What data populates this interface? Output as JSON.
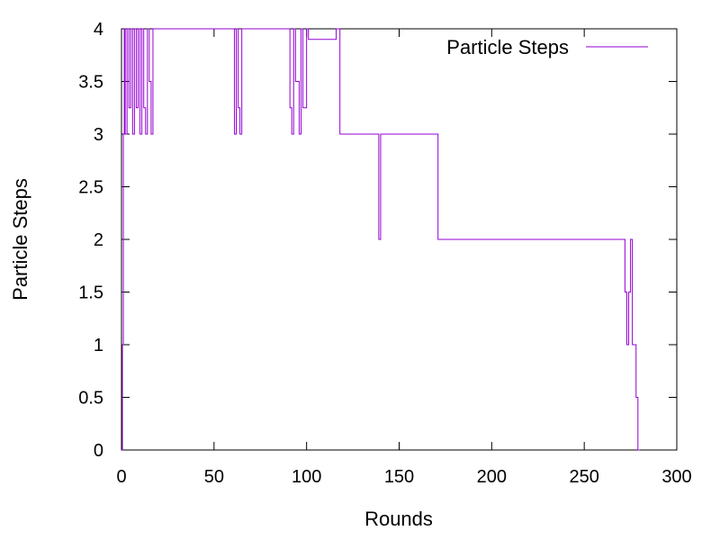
{
  "chart_data": {
    "type": "line",
    "title": "",
    "xlabel": "Rounds",
    "ylabel": "Particle Steps",
    "xlim": [
      0,
      300
    ],
    "ylim": [
      0,
      4
    ],
    "x_ticks": [
      "0",
      "50",
      "100",
      "150",
      "200",
      "250",
      "300"
    ],
    "y_ticks": [
      "0",
      "0.5",
      "1",
      "1.5",
      "2",
      "2.5",
      "3",
      "3.5",
      "4"
    ],
    "x_tick_values": [
      0,
      50,
      100,
      150,
      200,
      250,
      300
    ],
    "y_tick_values": [
      0,
      0.5,
      1,
      1.5,
      2,
      2.5,
      3,
      3.5,
      4
    ],
    "legend": {
      "position": "top-right"
    },
    "grid": false,
    "series": [
      {
        "name": "Particle Steps",
        "color": "#9400d3",
        "x": [
          0,
          0.5,
          0.5,
          1,
          1,
          1.5,
          1.5,
          2,
          2,
          3,
          3,
          4,
          4,
          5,
          5,
          6,
          6,
          7,
          7,
          8,
          8,
          9,
          9,
          10,
          10,
          11,
          11,
          12,
          12,
          13,
          13,
          14,
          14,
          15,
          15,
          16,
          16,
          17,
          17,
          18,
          18,
          61,
          61,
          62,
          62,
          63,
          63,
          64,
          64,
          65,
          65,
          91,
          91,
          92,
          92,
          93,
          93,
          94,
          94,
          96,
          96,
          97,
          97,
          98,
          98,
          100,
          100,
          101,
          101,
          116,
          116,
          118,
          118,
          139,
          139,
          140,
          140,
          141,
          141,
          142,
          142,
          171,
          171,
          172,
          172,
          272,
          272,
          273,
          273,
          274,
          274,
          275,
          275,
          276,
          276,
          277,
          277,
          278,
          278,
          279,
          279,
          280
        ],
        "y": [
          0,
          0,
          1,
          1,
          3,
          3,
          4,
          4,
          3,
          3,
          4,
          4,
          3.25,
          3.25,
          4,
          4,
          3,
          3,
          4,
          4,
          3.25,
          3.25,
          4,
          4,
          3,
          3,
          4,
          4,
          3.25,
          3.25,
          3,
          3,
          4,
          4,
          3.5,
          3.5,
          3,
          3,
          4,
          4,
          4,
          4,
          3,
          3,
          4,
          4,
          3.25,
          3.25,
          3,
          3,
          4,
          4,
          3.25,
          3.25,
          3,
          3,
          4,
          4,
          3.5,
          3.5,
          3,
          3,
          4,
          4,
          3.25,
          3.25,
          4,
          4,
          3.9,
          3.9,
          4,
          4,
          3,
          3,
          2,
          2,
          3,
          3,
          3,
          3,
          3,
          3,
          2,
          2,
          2,
          2,
          1.5,
          1.5,
          1,
          1,
          1.5,
          1.5,
          2,
          2,
          1,
          1,
          1,
          1,
          0.5,
          0.5,
          0,
          0
        ]
      }
    ]
  }
}
